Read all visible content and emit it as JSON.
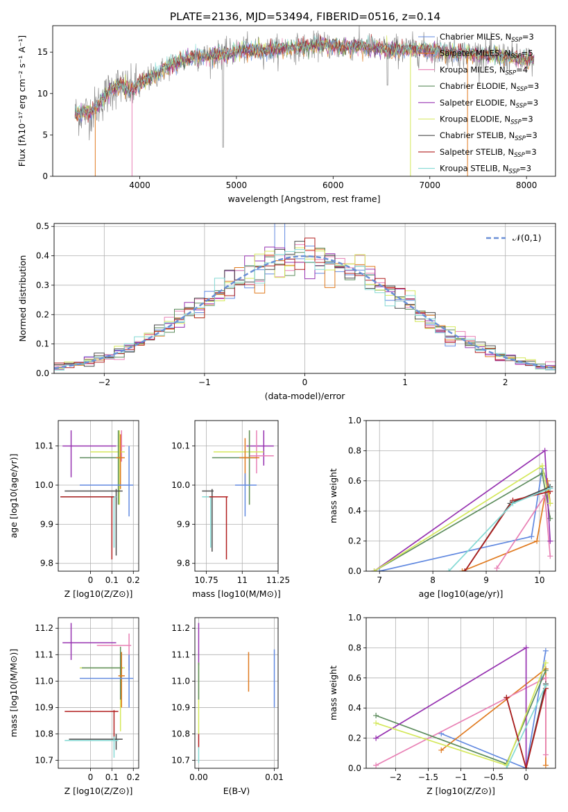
{
  "title": "PLATE=2136, MJD=53494, FIBERID=0516, z=0.14",
  "series_styles": [
    {
      "name": "Chabrier MILES",
      "color": "#6189e0"
    },
    {
      "name": "Salpeter MILES",
      "color": "#e07a1f"
    },
    {
      "name": "Kroupa MILES",
      "color": "#e87fb4"
    },
    {
      "name": "Chabrier ELODIE",
      "color": "#5c8c5c"
    },
    {
      "name": "Salpeter ELODIE",
      "color": "#9631b0"
    },
    {
      "name": "Kroupa ELODIE",
      "color": "#d4e85a"
    },
    {
      "name": "Chabrier STELIB",
      "color": "#4a4a4a"
    },
    {
      "name": "Salpeter STELIB",
      "color": "#b01c1c"
    },
    {
      "name": "Kroupa STELIB",
      "color": "#84d9d4"
    }
  ],
  "chart_data": [
    {
      "id": "spectrum",
      "type": "line",
      "xlabel": "wavelength [Angstrom, rest frame]",
      "ylabel": "Flux [fλ10⁻¹⁷ erg cm⁻² s⁻¹ A⁻¹]",
      "xlim": [
        3100,
        8300
      ],
      "ylim": [
        0,
        18.2
      ],
      "xticks": [
        4000,
        5000,
        6000,
        7000,
        8000
      ],
      "yticks": [
        0,
        5,
        10,
        15
      ],
      "grid": false,
      "legend_position": "top-right",
      "legend": [
        "Chabrier MILES, N_SSP=3",
        "Salpeter MILES, N_SSP=5",
        "Kroupa MILES, N_SSP=4",
        "Chabrier ELODIE, N_SSP=3",
        "Salpeter ELODIE, N_SSP=3",
        "Kroupa ELODIE, N_SSP=3",
        "Chabrier STELIB, N_SSP=3",
        "Salpeter STELIB, N_SSP=3",
        "Kroupa STELIB, N_SSP=3"
      ],
      "data_wavelength_range": [
        3330,
        8080
      ],
      "continuum": [
        [
          3330,
          7.5
        ],
        [
          3500,
          7.8
        ],
        [
          3600,
          9.0
        ],
        [
          3700,
          10.5
        ],
        [
          3800,
          11.0
        ],
        [
          3900,
          10.3
        ],
        [
          3950,
          10.8
        ],
        [
          4000,
          11.2
        ],
        [
          4100,
          11.8
        ],
        [
          4200,
          12.5
        ],
        [
          4300,
          13.3
        ],
        [
          4400,
          13.8
        ],
        [
          4500,
          14.3
        ],
        [
          4700,
          14.5
        ],
        [
          4900,
          14.8
        ],
        [
          5100,
          15.3
        ],
        [
          5300,
          15.2
        ],
        [
          5500,
          15.5
        ],
        [
          5700,
          15.6
        ],
        [
          5900,
          15.9
        ],
        [
          6100,
          15.6
        ],
        [
          6300,
          15.7
        ],
        [
          6500,
          15.4
        ],
        [
          6700,
          15.3
        ],
        [
          6900,
          15.3
        ],
        [
          7100,
          15.1
        ],
        [
          7300,
          14.9
        ],
        [
          7500,
          14.7
        ],
        [
          7700,
          14.6
        ],
        [
          7900,
          14.2
        ],
        [
          8080,
          13.9
        ]
      ],
      "model_dropouts": [
        {
          "series": "Salpeter MILES",
          "x": 3540
        },
        {
          "series": "Kroupa MILES",
          "x": 3920
        },
        {
          "series": "Kroupa ELODIE",
          "x": 6800
        },
        {
          "series": "Salpeter MILES",
          "x": 7390
        }
      ]
    },
    {
      "id": "residuals",
      "type": "line",
      "xlabel": "(data-model)/error",
      "ylabel": "Normed distribution",
      "xlim": [
        -2.5,
        2.5
      ],
      "ylim": [
        0,
        0.51
      ],
      "xticks": [
        -2,
        -1,
        0,
        1,
        2
      ],
      "yticks": [
        0.0,
        0.1,
        0.2,
        0.3,
        0.4,
        0.5
      ],
      "grid": true,
      "legend_position": "top-right",
      "legend": [
        "𝒩(0,1)"
      ],
      "bin_width": 0.1,
      "histograms": "one step histogram per model (9 models), bins of 0.1, scattered around the normal curve"
    },
    {
      "id": "age-vs-Z",
      "type": "scatter",
      "xlabel": "Z [log10(Z/Z⊙)]",
      "ylabel": "age  [log10(age/yr)]",
      "xlim": [
        -0.15,
        0.225
      ],
      "ylim": [
        9.78,
        10.165
      ],
      "xticks": [
        0.0,
        0.1,
        0.2
      ],
      "yticks": [
        9.8,
        9.9,
        10.0,
        10.1
      ],
      "grid": true,
      "errorbars": [
        {
          "series": "Salpeter ELODIE",
          "xmin": -0.13,
          "xmax": 0.12,
          "y": 10.1,
          "x": -0.09,
          "ymin": 10.02,
          "ymax": 10.14
        },
        {
          "series": "Kroupa MILES",
          "xmin": 0.13,
          "xmax": 0.16,
          "y": 10.1,
          "x": 0.145,
          "ymin": 10.06,
          "ymax": 10.14
        },
        {
          "series": "Kroupa ELODIE",
          "xmin": 0.0,
          "xmax": 0.16,
          "y": 10.085,
          "x": 0.135,
          "ymin": 9.95,
          "ymax": 10.14
        },
        {
          "series": "Chabrier ELODIE",
          "xmin": -0.05,
          "xmax": 0.14,
          "y": 10.07,
          "x": 0.13,
          "ymin": 9.95,
          "ymax": 10.14
        },
        {
          "series": "Salpeter MILES",
          "xmin": 0.12,
          "xmax": 0.16,
          "y": 10.07,
          "x": 0.14,
          "ymin": 9.99,
          "ymax": 10.13
        },
        {
          "series": "Chabrier MILES",
          "xmin": -0.05,
          "xmax": 0.2,
          "y": 10.0,
          "x": 0.18,
          "ymin": 9.92,
          "ymax": 10.1
        },
        {
          "series": "Chabrier STELIB",
          "xmin": -0.12,
          "xmax": 0.15,
          "y": 9.985,
          "x": 0.12,
          "ymin": 9.82,
          "ymax": 9.99
        },
        {
          "series": "Kroupa STELIB",
          "xmin": -0.14,
          "xmax": 0.12,
          "y": 9.97,
          "x": 0.11,
          "ymin": 9.84,
          "ymax": 9.97
        },
        {
          "series": "Salpeter STELIB",
          "xmin": -0.14,
          "xmax": 0.11,
          "y": 9.97,
          "x": 0.1,
          "ymin": 9.81,
          "ymax": 9.97
        }
      ]
    },
    {
      "id": "age-vs-mass",
      "type": "scatter",
      "xlabel": "mass [log10(M/M⊙)]",
      "ylabel": "",
      "xlim": [
        10.67,
        11.25
      ],
      "ylim": [
        9.78,
        10.165
      ],
      "xticks": [
        10.75,
        11.0,
        11.25
      ],
      "yticks": [
        9.8,
        9.9,
        10.0,
        10.1
      ],
      "grid": true,
      "errorbars": [
        {
          "series": "Salpeter ELODIE",
          "xmin": 11.03,
          "xmax": 11.22,
          "y": 10.1,
          "x": 11.15,
          "ymin": 10.05,
          "ymax": 10.14
        },
        {
          "series": "Kroupa MILES",
          "xmin": 11.05,
          "xmax": 11.22,
          "y": 10.075,
          "x": 11.1,
          "ymin": 10.03,
          "ymax": 10.14
        },
        {
          "series": "Kroupa ELODIE",
          "xmin": 10.8,
          "xmax": 11.15,
          "y": 10.085,
          "x": 11.05,
          "ymin": 9.95,
          "ymax": 10.14
        },
        {
          "series": "Chabrier ELODIE",
          "xmin": 10.79,
          "xmax": 11.1,
          "y": 10.07,
          "x": 11.05,
          "ymin": 9.95,
          "ymax": 10.14
        },
        {
          "series": "Salpeter MILES",
          "xmin": 10.98,
          "xmax": 11.12,
          "y": 10.07,
          "x": 11.02,
          "ymin": 10.0,
          "ymax": 10.12
        },
        {
          "series": "Chabrier MILES",
          "xmin": 10.95,
          "xmax": 11.1,
          "y": 10.0,
          "x": 11.02,
          "ymin": 9.92,
          "ymax": 10.03
        },
        {
          "series": "Chabrier STELIB",
          "xmin": 10.72,
          "xmax": 10.8,
          "y": 9.985,
          "x": 10.79,
          "ymin": 9.83,
          "ymax": 9.99
        },
        {
          "series": "Kroupa STELIB",
          "xmin": 10.72,
          "xmax": 10.8,
          "y": 9.97,
          "x": 10.78,
          "ymin": 9.84,
          "ymax": 9.97
        },
        {
          "series": "Salpeter STELIB",
          "xmin": 10.77,
          "xmax": 10.9,
          "y": 9.97,
          "x": 10.89,
          "ymin": 9.81,
          "ymax": 9.97
        }
      ]
    },
    {
      "id": "mass-weight-vs-age",
      "type": "line",
      "xlabel": "age  [log10(age/yr)]",
      "ylabel": "mass weight",
      "xlim": [
        6.75,
        10.3
      ],
      "ylim": [
        0,
        1.0
      ],
      "xticks": [
        7,
        8,
        9,
        10
      ],
      "yticks": [
        0.0,
        0.2,
        0.4,
        0.6,
        0.8,
        1.0
      ],
      "grid": true,
      "series": [
        {
          "name": "Chabrier MILES",
          "points": [
            [
              7.0,
              0.0
            ],
            [
              9.85,
              0.23
            ],
            [
              10.05,
              0.68
            ],
            [
              10.2,
              0.55
            ]
          ]
        },
        {
          "name": "Salpeter MILES",
          "points": [
            [
              8.55,
              0.0
            ],
            [
              9.95,
              0.2
            ],
            [
              10.15,
              0.6
            ],
            [
              10.2,
              0.45
            ]
          ]
        },
        {
          "name": "Kroupa MILES",
          "points": [
            [
              9.2,
              0.02
            ],
            [
              10.1,
              0.5
            ],
            [
              10.2,
              0.1
            ]
          ]
        },
        {
          "name": "Chabrier ELODIE",
          "points": [
            [
              6.9,
              0.0
            ],
            [
              10.05,
              0.65
            ],
            [
              10.2,
              0.35
            ]
          ]
        },
        {
          "name": "Salpeter ELODIE",
          "points": [
            [
              6.9,
              0.0
            ],
            [
              10.1,
              0.8
            ],
            [
              10.2,
              0.2
            ]
          ]
        },
        {
          "name": "Kroupa ELODIE",
          "points": [
            [
              6.9,
              0.0
            ],
            [
              10.05,
              0.7
            ],
            [
              10.2,
              0.45
            ]
          ]
        },
        {
          "name": "Chabrier STELIB",
          "points": [
            [
              8.6,
              0.0
            ],
            [
              9.45,
              0.45
            ],
            [
              10.2,
              0.56
            ]
          ]
        },
        {
          "name": "Salpeter STELIB",
          "points": [
            [
              8.6,
              0.0
            ],
            [
              9.5,
              0.47
            ],
            [
              10.2,
              0.53
            ]
          ]
        },
        {
          "name": "Kroupa STELIB",
          "points": [
            [
              8.3,
              0.0
            ],
            [
              9.5,
              0.45
            ],
            [
              10.2,
              0.55
            ]
          ]
        }
      ]
    },
    {
      "id": "mass-vs-Z",
      "type": "scatter",
      "xlabel": "Z [log10(Z/Z⊙)]",
      "ylabel": "mass [log10(M/M⊙)]",
      "xlim": [
        -0.15,
        0.225
      ],
      "ylim": [
        10.67,
        11.24
      ],
      "xticks": [
        0.0,
        0.1,
        0.2
      ],
      "yticks": [
        10.7,
        10.8,
        10.9,
        11.0,
        11.1,
        11.2
      ],
      "grid": true,
      "errorbars": [
        {
          "series": "Salpeter ELODIE",
          "xmin": -0.13,
          "xmax": 0.12,
          "y": 11.145,
          "x": -0.09,
          "ymin": 11.08,
          "ymax": 11.22
        },
        {
          "series": "Kroupa MILES",
          "xmin": 0.03,
          "xmax": 0.19,
          "y": 11.135,
          "x": 0.18,
          "ymin": 11.04,
          "ymax": 11.18
        },
        {
          "series": "Kroupa ELODIE",
          "xmin": -0.05,
          "xmax": 0.16,
          "y": 11.05,
          "x": 0.14,
          "ymin": 10.81,
          "ymax": 11.13
        },
        {
          "series": "Chabrier ELODIE",
          "xmin": -0.04,
          "xmax": 0.15,
          "y": 11.05,
          "x": 0.14,
          "ymin": 10.93,
          "ymax": 11.13
        },
        {
          "series": "Salpeter MILES",
          "xmin": 0.13,
          "xmax": 0.16,
          "y": 11.02,
          "x": 0.145,
          "ymin": 10.9,
          "ymax": 11.11
        },
        {
          "series": "Chabrier MILES",
          "xmin": -0.05,
          "xmax": 0.2,
          "y": 11.01,
          "x": 0.18,
          "ymin": 10.9,
          "ymax": 11.1
        },
        {
          "series": "Salpeter STELIB",
          "xmin": -0.12,
          "xmax": 0.13,
          "y": 10.885,
          "x": 0.11,
          "ymin": 10.78,
          "ymax": 10.89
        },
        {
          "series": "Chabrier STELIB",
          "xmin": -0.1,
          "xmax": 0.15,
          "y": 10.78,
          "x": 0.12,
          "ymin": 10.74,
          "ymax": 10.8
        },
        {
          "series": "Kroupa STELIB",
          "xmin": -0.12,
          "xmax": 0.13,
          "y": 10.775,
          "x": 0.11,
          "ymin": 10.71,
          "ymax": 10.79
        }
      ]
    },
    {
      "id": "mass-vs-ebv",
      "type": "scatter",
      "xlabel": "E(B-V)",
      "ylabel": "",
      "xlim": [
        -0.0005,
        0.0105
      ],
      "ylim": [
        10.67,
        11.24
      ],
      "xticks": [
        0.0,
        0.01
      ],
      "xticklabels": [
        "0.00",
        "0.01"
      ],
      "yticks": [
        10.7,
        10.8,
        10.9,
        11.0,
        11.1,
        11.2
      ],
      "grid": true,
      "errorbars": [
        {
          "series": "Salpeter ELODIE",
          "x": 0.0,
          "ymin": 11.06,
          "ymax": 11.22
        },
        {
          "series": "Kroupa ELODIE",
          "x": 0.0,
          "ymin": 10.8,
          "ymax": 11.07
        },
        {
          "series": "Chabrier ELODIE",
          "x": 0.0,
          "ymin": 10.93,
          "ymax": 11.07
        },
        {
          "series": "Salpeter STELIB",
          "x": 0.0,
          "ymin": 10.75,
          "ymax": 10.8
        },
        {
          "series": "Kroupa STELIB",
          "x": 0.0,
          "ymin": 10.69,
          "ymax": 10.75
        },
        {
          "series": "Salpeter MILES",
          "x": 0.0066,
          "ymin": 10.96,
          "ymax": 11.11
        },
        {
          "series": "Chabrier MILES",
          "x": 0.01,
          "ymin": 10.9,
          "ymax": 11.12
        }
      ]
    },
    {
      "id": "mass-weight-vs-Z",
      "type": "line",
      "xlabel": "Z [log10(Z/Z⊙)]",
      "ylabel": "mass weight",
      "xlim": [
        -2.45,
        0.45
      ],
      "ylim": [
        0,
        1.0
      ],
      "xticks": [
        -2.0,
        -1.5,
        -1.0,
        -0.5,
        0.0
      ],
      "yticks": [
        0.0,
        0.2,
        0.4,
        0.6,
        0.8,
        1.0
      ],
      "grid": true,
      "series": [
        {
          "name": "Chabrier MILES",
          "points": [
            [
              -1.3,
              0.23
            ],
            [
              0.0,
              0.0
            ],
            [
              0.3,
              0.78
            ]
          ]
        },
        {
          "name": "Salpeter MILES",
          "points": [
            [
              -1.3,
              0.12
            ],
            [
              0.3,
              0.66
            ],
            [
              0.3,
              0.02
            ]
          ]
        },
        {
          "name": "Kroupa MILES",
          "points": [
            [
              -2.3,
              0.02
            ],
            [
              0.3,
              0.6
            ],
            [
              0.3,
              0.09
            ]
          ]
        },
        {
          "name": "Chabrier ELODIE",
          "points": [
            [
              -2.3,
              0.35
            ],
            [
              -0.3,
              0.03
            ],
            [
              0.3,
              0.65
            ]
          ]
        },
        {
          "name": "Salpeter ELODIE",
          "points": [
            [
              -2.3,
              0.2
            ],
            [
              0.0,
              0.8
            ],
            [
              0.0,
              0.0
            ]
          ]
        },
        {
          "name": "Kroupa ELODIE",
          "points": [
            [
              -2.3,
              0.3
            ],
            [
              -0.3,
              0.02
            ],
            [
              0.3,
              0.7
            ]
          ]
        },
        {
          "name": "Chabrier STELIB",
          "points": [
            [
              -0.3,
              0.47
            ],
            [
              0.0,
              0.0
            ],
            [
              0.3,
              0.56
            ]
          ]
        },
        {
          "name": "Salpeter STELIB",
          "points": [
            [
              -0.3,
              0.47
            ],
            [
              0.0,
              0.0
            ],
            [
              0.3,
              0.53
            ]
          ]
        },
        {
          "name": "Kroupa STELIB",
          "points": [
            [
              -0.3,
              0.0
            ],
            [
              0.3,
              0.55
            ]
          ]
        }
      ]
    }
  ]
}
